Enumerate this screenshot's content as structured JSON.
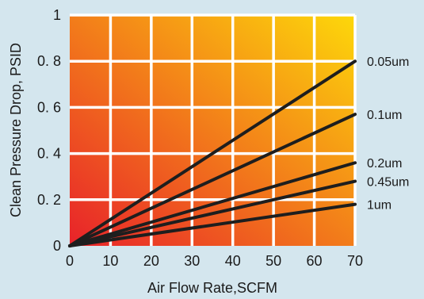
{
  "chart_data": {
    "type": "line",
    "xlabel": "Air Flow Rate,SCFM",
    "ylabel": "Clean Pressure Drop, PSID",
    "xlim": [
      0,
      70
    ],
    "ylim": [
      0,
      1
    ],
    "x_ticks": [
      {
        "value": 0,
        "label": "0"
      },
      {
        "value": 10,
        "label": "10"
      },
      {
        "value": 20,
        "label": "20"
      },
      {
        "value": 30,
        "label": "30"
      },
      {
        "value": 40,
        "label": "40"
      },
      {
        "value": 50,
        "label": "50"
      },
      {
        "value": 60,
        "label": "60"
      },
      {
        "value": 70,
        "label": "70"
      }
    ],
    "y_ticks": [
      {
        "value": 0,
        "label": "0"
      },
      {
        "value": 0.2,
        "label": "0. 2"
      },
      {
        "value": 0.4,
        "label": "0. 4"
      },
      {
        "value": 0.6,
        "label": "0. 6"
      },
      {
        "value": 0.8,
        "label": "0. 8"
      },
      {
        "value": 1,
        "label": "1"
      }
    ],
    "grid": true,
    "background_gradient": [
      "#e8222a",
      "#fdd80a"
    ],
    "series": [
      {
        "name": "0.05um",
        "x": [
          0,
          70
        ],
        "y": [
          0,
          0.8
        ]
      },
      {
        "name": "0.1um",
        "x": [
          0,
          70
        ],
        "y": [
          0,
          0.57
        ]
      },
      {
        "name": "0.2um",
        "x": [
          0,
          70
        ],
        "y": [
          0,
          0.36
        ]
      },
      {
        "name": "0.45um",
        "x": [
          0,
          70
        ],
        "y": [
          0,
          0.28
        ]
      },
      {
        "name": "1um",
        "x": [
          0,
          70
        ],
        "y": [
          0,
          0.18
        ]
      }
    ]
  }
}
